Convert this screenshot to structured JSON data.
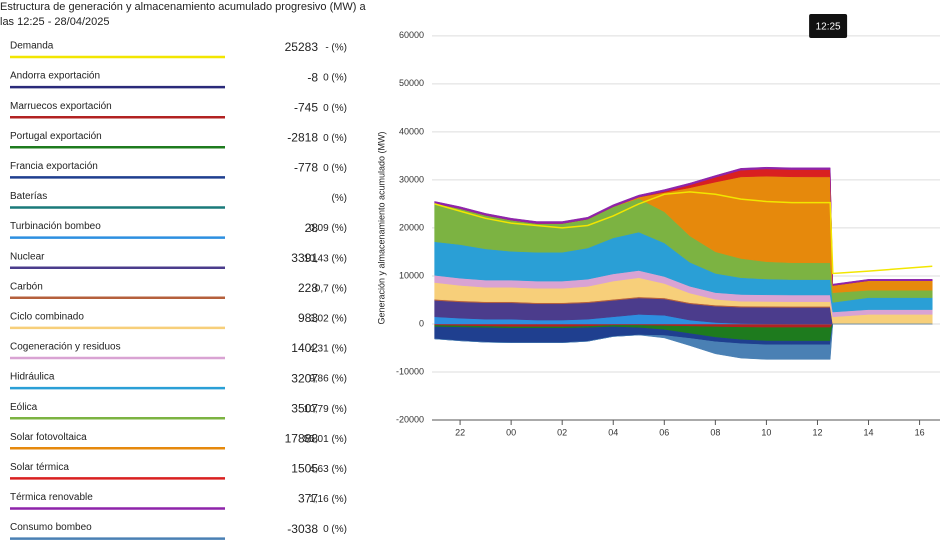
{
  "chart_data": {
    "type": "stacked-area",
    "title": "Estructura de generación y almacenamiento acumulado progresivo (MW) a las 12:25 - 28/04/2025",
    "y_label": "Generación y almacenamiento acumulado (MW)",
    "tooltip": "12:25",
    "cursor_x": 36.4167,
    "x": [
      21,
      22,
      23,
      24,
      25,
      26,
      27,
      28,
      29,
      30,
      31,
      32,
      33,
      34,
      35,
      36,
      36.5,
      36.6,
      38,
      40.5
    ],
    "xlim": [
      20.9,
      40.8
    ],
    "xticks": [
      22,
      {
        "value": 24,
        "label": "00"
      },
      {
        "value": 26,
        "label": "02"
      },
      {
        "value": 28,
        "label": "04"
      },
      {
        "value": 30,
        "label": "06"
      },
      {
        "value": 32,
        "label": "08"
      },
      {
        "value": 34,
        "label": "10"
      },
      {
        "value": 36,
        "label": "12"
      },
      {
        "value": 38,
        "label": "14"
      },
      {
        "value": 40,
        "label": "16"
      }
    ],
    "ylim": [
      -20000,
      63300
    ],
    "yticks": [
      -20000,
      -10000,
      0,
      10000,
      20000,
      30000,
      40000,
      50000,
      60000
    ],
    "grid": true,
    "series": [
      {
        "name": "Demanda",
        "type": "line",
        "color": "#f2e600",
        "value": 25283,
        "pct": "- (%)",
        "values": [
          25000,
          23500,
          22000,
          21000,
          20500,
          20000,
          20500,
          22500,
          25000,
          27000,
          27500,
          27000,
          26000,
          25500,
          25283,
          25283,
          25283,
          10500,
          11000,
          12000
        ]
      },
      {
        "name": "Andorra exportación",
        "type": "area",
        "color": "#2a2a7a",
        "value": -8,
        "pct": "0 (%)",
        "values": [
          -8,
          -8,
          -8,
          -8,
          -8,
          -8,
          -8,
          -8,
          -8,
          -8,
          -8,
          -8,
          -8,
          -8,
          -8,
          -8,
          -8,
          0,
          0,
          0
        ]
      },
      {
        "name": "Marruecos exportación",
        "type": "area",
        "color": "#b22222",
        "value": -745,
        "pct": "0 (%)",
        "values": [
          -300,
          -400,
          -500,
          -600,
          -600,
          -600,
          -500,
          -300,
          -300,
          -400,
          -500,
          -600,
          -700,
          -745,
          -745,
          -745,
          -745,
          0,
          0,
          0
        ]
      },
      {
        "name": "Portugal exportación",
        "type": "area",
        "color": "#1e7b1e",
        "value": -2818,
        "pct": "0 (%)",
        "values": [
          -300,
          -300,
          -300,
          -300,
          -300,
          -300,
          -300,
          -300,
          -500,
          -800,
          -1500,
          -2200,
          -2600,
          -2800,
          -2818,
          -2818,
          -2818,
          0,
          0,
          0
        ]
      },
      {
        "name": "Francia exportación",
        "type": "area",
        "color": "#1f3f8f",
        "value": -778,
        "pct": "0 (%)",
        "values": [
          -2500,
          -2800,
          -3000,
          -3000,
          -3000,
          -3000,
          -2800,
          -2000,
          -1500,
          -1200,
          -1000,
          -900,
          -800,
          -780,
          -778,
          -778,
          -778,
          0,
          0,
          0
        ]
      },
      {
        "name": "Baterías",
        "type": "area",
        "color": "#1a7a7a",
        "pct": "(%)"
      },
      {
        "name": "Turbinación bombeo",
        "type": "area",
        "color": "#2d8fe0",
        "value": 28,
        "pct": "0,09 (%)",
        "values": [
          1500,
          1200,
          1000,
          1000,
          800,
          800,
          1000,
          1500,
          2000,
          1800,
          800,
          300,
          100,
          50,
          30,
          28,
          28,
          0,
          0,
          0
        ]
      },
      {
        "name": "Nuclear",
        "type": "area",
        "color": "#4b3c8c",
        "value": 3391,
        "pct": "10,43 (%)",
        "values": [
          3400,
          3400,
          3400,
          3400,
          3400,
          3400,
          3400,
          3400,
          3400,
          3400,
          3400,
          3400,
          3400,
          3391,
          3391,
          3391,
          3391,
          0,
          0,
          0
        ]
      },
      {
        "name": "Carbón",
        "type": "area",
        "color": "#b5603c",
        "value": 228,
        "pct": "0,7 (%)",
        "values": [
          228,
          228,
          228,
          228,
          228,
          228,
          228,
          228,
          228,
          228,
          228,
          228,
          228,
          228,
          228,
          228,
          228,
          0,
          0,
          0
        ]
      },
      {
        "name": "Ciclo combinado",
        "type": "area",
        "color": "#f7cf7a",
        "value": 983,
        "pct": "3,02 (%)",
        "values": [
          3500,
          3200,
          3000,
          3000,
          3000,
          3000,
          3200,
          3800,
          4000,
          3000,
          2000,
          1200,
          1000,
          1000,
          983,
          983,
          983,
          1500,
          2000,
          2000
        ]
      },
      {
        "name": "Cogeneración y residuos",
        "type": "area",
        "color": "#d9a3d3",
        "value": 1402,
        "pct": "4,31 (%)",
        "values": [
          1500,
          1500,
          1500,
          1500,
          1500,
          1500,
          1500,
          1500,
          1500,
          1450,
          1420,
          1410,
          1400,
          1402,
          1402,
          1402,
          1402,
          1000,
          1000,
          1000
        ]
      },
      {
        "name": "Hidráulica",
        "type": "area",
        "color": "#2a9fd6",
        "value": 3207,
        "pct": "9,86 (%)",
        "values": [
          7000,
          7000,
          6500,
          6000,
          6000,
          6000,
          6500,
          7500,
          8000,
          7000,
          5000,
          4000,
          3500,
          3300,
          3207,
          3207,
          3207,
          2000,
          2500,
          2500
        ]
      },
      {
        "name": "Eólica",
        "type": "area",
        "color": "#7cb342",
        "value": 3507,
        "pct": "10,79 (%)",
        "values": [
          8000,
          7500,
          7000,
          6500,
          6000,
          6000,
          6000,
          6500,
          7000,
          6500,
          5500,
          4500,
          4000,
          3600,
          3507,
          3507,
          3507,
          2000,
          1500,
          1500
        ]
      },
      {
        "name": "Solar fotovoltaica",
        "type": "area",
        "color": "#e6890c",
        "value": 17888,
        "pct": "55,01 (%)",
        "values": [
          0,
          0,
          0,
          0,
          0,
          0,
          0,
          0,
          300,
          4000,
          10000,
          14500,
          17000,
          17800,
          17888,
          17888,
          17888,
          1500,
          2000,
          2000
        ]
      },
      {
        "name": "Solar térmica",
        "type": "area",
        "color": "#d92020",
        "value": 1505,
        "pct": "4,63 (%)",
        "values": [
          0,
          0,
          0,
          0,
          0,
          0,
          0,
          0,
          0,
          200,
          600,
          1000,
          1400,
          1500,
          1505,
          1505,
          1505,
          0,
          0,
          0
        ]
      },
      {
        "name": "Térmica renovable",
        "type": "area",
        "color": "#8e24aa",
        "value": 377,
        "pct": "1,16 (%)",
        "values": [
          400,
          400,
          400,
          400,
          400,
          400,
          400,
          400,
          400,
          400,
          390,
          380,
          380,
          377,
          377,
          377,
          377,
          300,
          300,
          300
        ]
      },
      {
        "name": "Consumo bombeo",
        "type": "area",
        "color": "#4a80b4",
        "value": -3038,
        "pct": "0 (%)",
        "values": [
          0,
          0,
          0,
          0,
          0,
          0,
          0,
          0,
          0,
          -500,
          -1500,
          -2500,
          -3000,
          -3038,
          -3038,
          -3038,
          -3038,
          0,
          0,
          0
        ]
      }
    ]
  }
}
